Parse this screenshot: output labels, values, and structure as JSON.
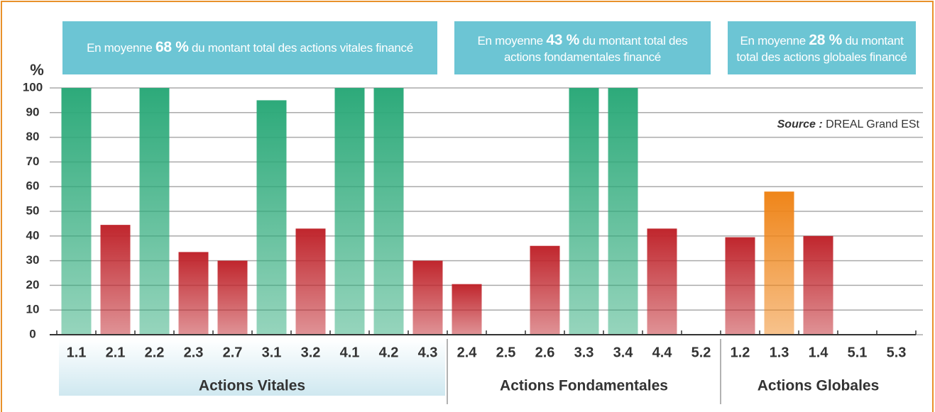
{
  "chart_data": {
    "type": "bar",
    "y_label": "%",
    "source_label": "Source :",
    "source": " DREAL Grand ESt",
    "categories": [
      "1.1",
      "2.1",
      "2.2",
      "2.3",
      "2.7",
      "3.1",
      "3.2",
      "4.1",
      "4.2",
      "4.3",
      "2.4",
      "2.5",
      "2.6",
      "3.3",
      "3.4",
      "4.4",
      "5.2",
      "1.2",
      "1.3",
      "1.4",
      "5.1",
      "5.3"
    ],
    "values": [
      100,
      44.5,
      100,
      33.5,
      30,
      95,
      43,
      100,
      100,
      30,
      20.5,
      0,
      36,
      100,
      100,
      43,
      0,
      39.5,
      58,
      40,
      0,
      0
    ],
    "colors": [
      "#2daa7a",
      "#c0262d",
      "#2daa7a",
      "#c0262d",
      "#c0262d",
      "#2daa7a",
      "#c0262d",
      "#2daa7a",
      "#2daa7a",
      "#c0262d",
      "#c0262d",
      "#c0262d",
      "#c0262d",
      "#2daa7a",
      "#2daa7a",
      "#c0262d",
      "#c0262d",
      "#c0262d",
      "#ef8519",
      "#c0262d",
      "#c0262d",
      "#c0262d"
    ],
    "ylim": [
      0,
      100
    ],
    "yticks": [
      0,
      10,
      20,
      30,
      40,
      50,
      60,
      70,
      80,
      90,
      100
    ],
    "grid": true,
    "groups": [
      {
        "label": "Actions Vitales",
        "note_before": "En moyenne ",
        "note_value": "68 %",
        "note_after": " du montant total des actions vitales financé"
      },
      {
        "label": "Actions Fondamentales",
        "note_before": "En moyenne ",
        "note_value": "43 %",
        "note_after": " du montant total des actions fondamentales financé"
      },
      {
        "label": "Actions Globales",
        "note_before": "En moyenne ",
        "note_value": "28 %",
        "note_after": " du montant total des actions globales financé"
      }
    ]
  }
}
